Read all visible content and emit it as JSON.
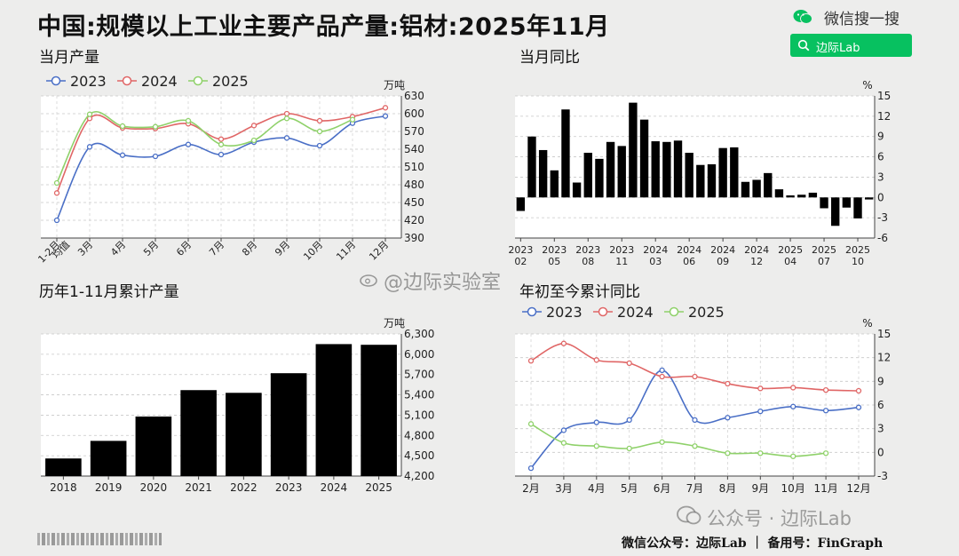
{
  "title": "中国:规模以上工业主要产品产量:铝材:2025年11月",
  "wechat_search": {
    "label": "微信搜一搜",
    "button": "边际Lab"
  },
  "watermark": "@边际实验室",
  "brand": "公众号 · 边际Lab",
  "footer": "微信公众号：边际Lab ｜ 备用号：FinGraph",
  "colors": {
    "2023": "#4a6fc6",
    "2024": "#e06666",
    "2025": "#8fd16a",
    "bar": "#000000",
    "accent": "#07c160"
  },
  "chart_data": [
    {
      "id": "monthly",
      "type": "line",
      "title": "当月产量",
      "unit": "万吨",
      "categories": [
        "1-2月\n均值",
        "3月",
        "4月",
        "5月",
        "6月",
        "7月",
        "8月",
        "9月",
        "10月",
        "11月",
        "12月"
      ],
      "ylim": [
        390,
        630
      ],
      "yticks": [
        390,
        420,
        450,
        480,
        510,
        540,
        570,
        600,
        630
      ],
      "grid": true,
      "legend": "top-left",
      "series": [
        {
          "name": "2023",
          "values": [
            420,
            544,
            530,
            528,
            548,
            531,
            552,
            559,
            546,
            584,
            596
          ]
        },
        {
          "name": "2024",
          "values": [
            466,
            592,
            576,
            575,
            583,
            557,
            580,
            600,
            588,
            595,
            610
          ]
        },
        {
          "name": "2025",
          "values": [
            483,
            599,
            579,
            578,
            588,
            548,
            555,
            592,
            570,
            590,
            null
          ]
        }
      ]
    },
    {
      "id": "yoy",
      "type": "bar",
      "title": "当月同比",
      "unit": "%",
      "ylim": [
        -6,
        15
      ],
      "yticks": [
        -6,
        -3,
        0,
        3,
        6,
        9,
        12,
        15
      ],
      "grid": true,
      "tick_labels": [
        [
          "2023",
          "02"
        ],
        [
          "2023",
          "05"
        ],
        [
          "2023",
          "08"
        ],
        [
          "2023",
          "11"
        ],
        [
          "2024",
          "03"
        ],
        [
          "2024",
          "06"
        ],
        [
          "2024",
          "09"
        ],
        [
          "2024",
          "12"
        ],
        [
          "2025",
          "04"
        ],
        [
          "2025",
          "07"
        ],
        [
          "2025",
          "10"
        ]
      ],
      "values": [
        -2.0,
        9.0,
        7.0,
        4.0,
        13.0,
        2.2,
        6.6,
        5.7,
        8.2,
        7.6,
        14.0,
        11.5,
        8.3,
        8.2,
        8.4,
        6.6,
        4.8,
        4.9,
        7.3,
        7.4,
        2.3,
        2.6,
        3.6,
        1.2,
        0.3,
        0.4,
        0.7,
        -1.6,
        -4.2,
        -1.5,
        -3.1,
        -0.3
      ]
    },
    {
      "id": "ytd",
      "type": "bar",
      "title": "历年1-11月累计产量",
      "unit": "万吨",
      "categories": [
        "2018",
        "2019",
        "2020",
        "2021",
        "2022",
        "2023",
        "2024",
        "2025"
      ],
      "values": [
        4460,
        4720,
        5080,
        5470,
        5430,
        5720,
        6150,
        6140
      ],
      "ylim": [
        4200,
        6300
      ],
      "yticks": [
        4200,
        4500,
        4800,
        5100,
        5400,
        5700,
        6000,
        6300
      ],
      "grid": true
    },
    {
      "id": "ytd_yoy",
      "type": "line",
      "title": "年初至今累计同比",
      "unit": "%",
      "categories": [
        "2月",
        "3月",
        "4月",
        "5月",
        "6月",
        "7月",
        "8月",
        "9月",
        "10月",
        "11月",
        "12月"
      ],
      "ylim": [
        -3,
        15
      ],
      "yticks": [
        -3,
        0,
        3,
        6,
        9,
        12,
        15
      ],
      "grid": true,
      "legend": "top-left",
      "series": [
        {
          "name": "2023",
          "values": [
            -2.0,
            2.8,
            3.8,
            4.1,
            10.4,
            4.1,
            4.4,
            5.2,
            5.8,
            5.3,
            5.7
          ]
        },
        {
          "name": "2024",
          "values": [
            11.6,
            13.8,
            11.7,
            11.3,
            9.6,
            9.6,
            8.7,
            8.1,
            8.2,
            7.9,
            7.8
          ]
        },
        {
          "name": "2025",
          "values": [
            3.6,
            1.2,
            0.8,
            0.5,
            1.3,
            0.8,
            -0.1,
            -0.1,
            -0.5,
            -0.1,
            null
          ]
        }
      ]
    }
  ]
}
